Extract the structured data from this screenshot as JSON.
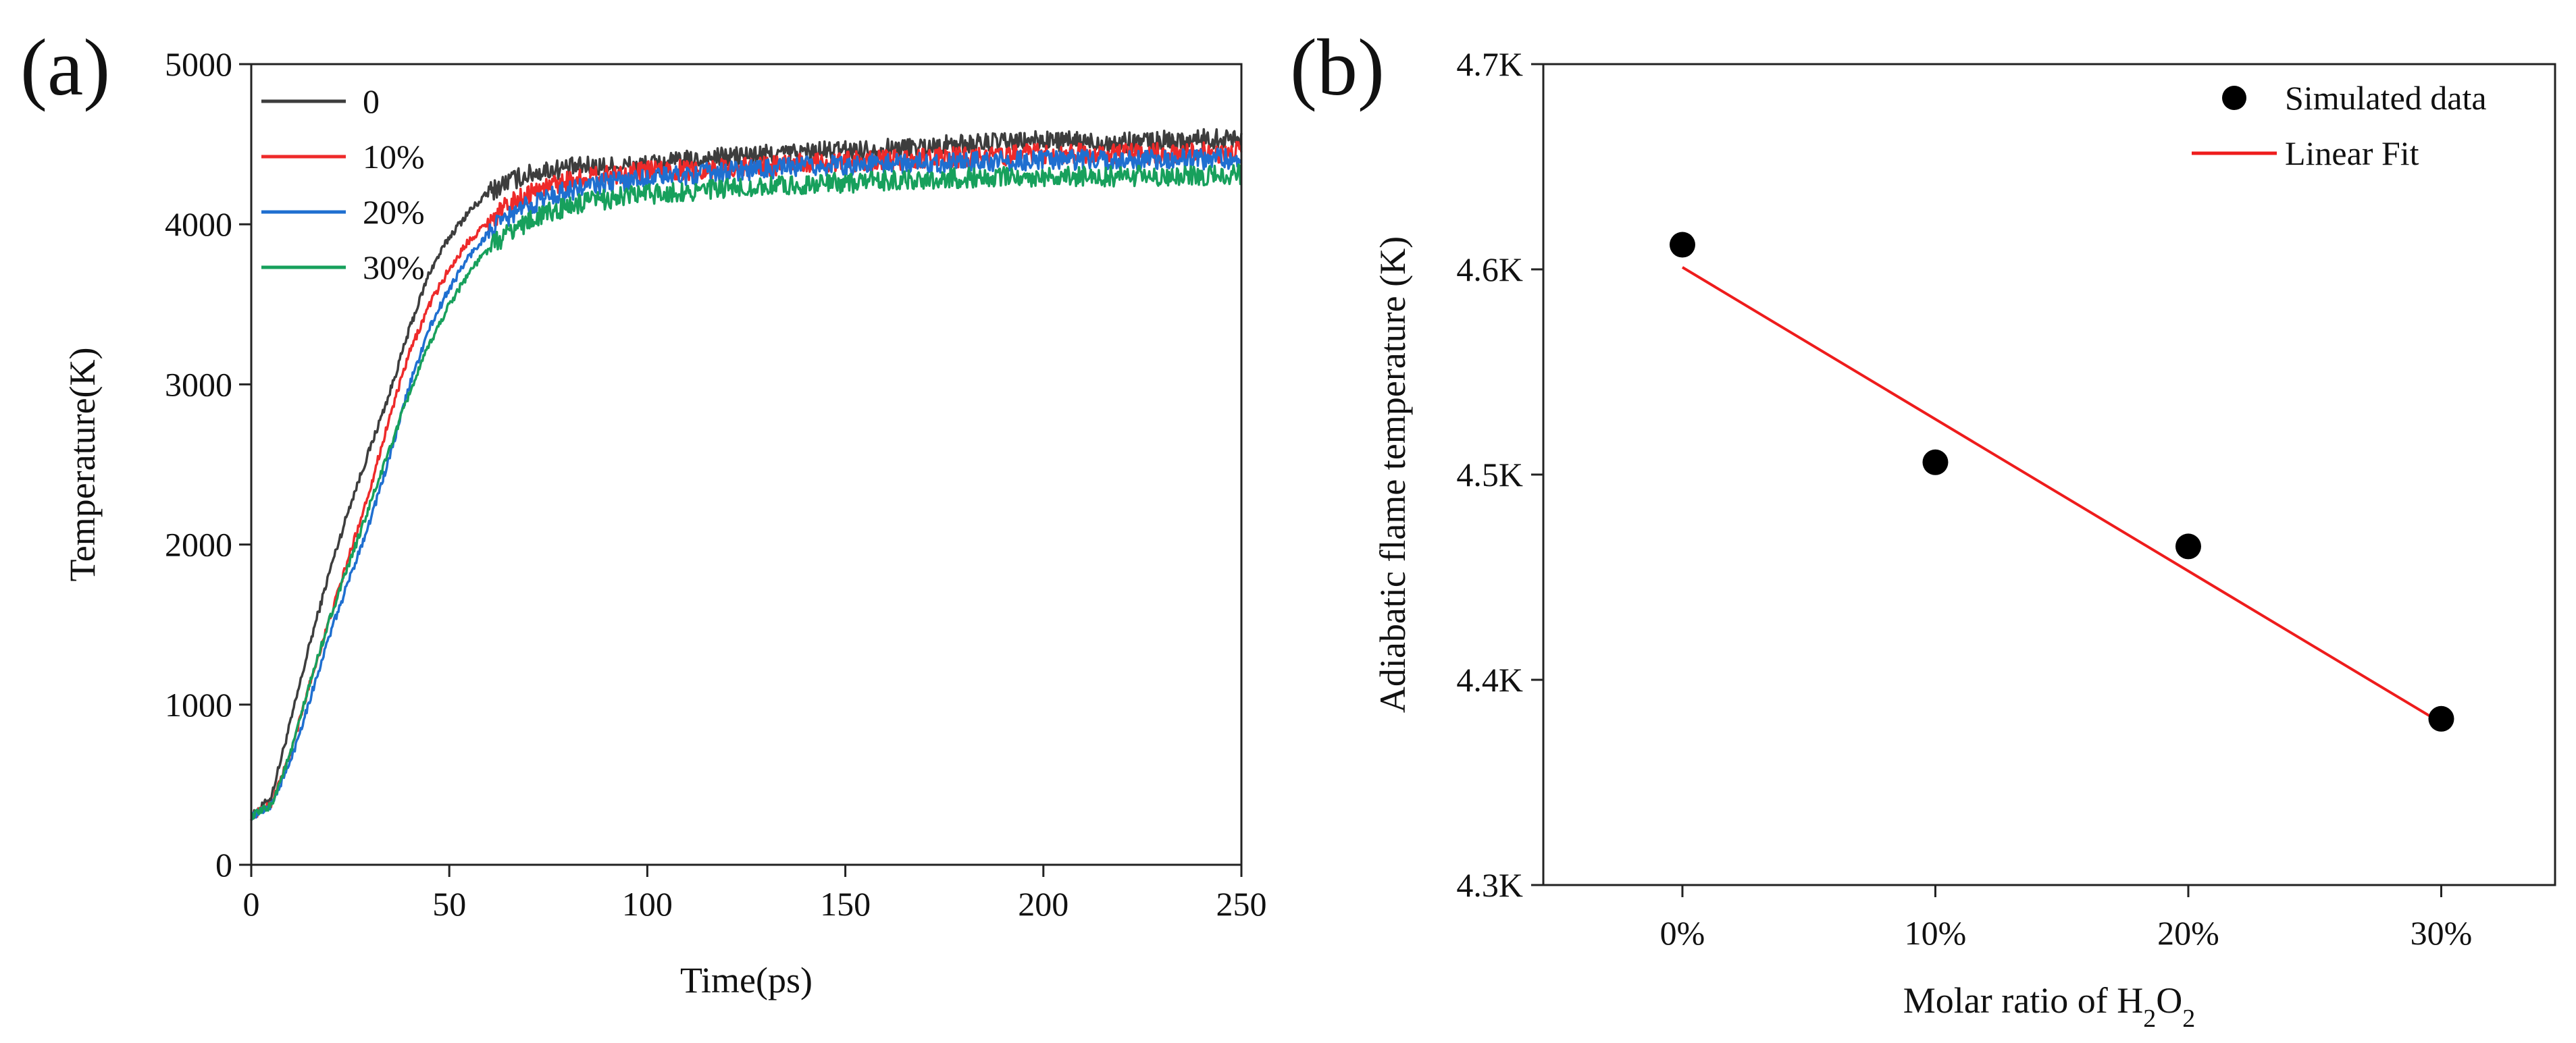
{
  "chart_data": [
    {
      "panel": "(a)",
      "type": "line",
      "xlabel": "Time(ps)",
      "ylabel": "Temperature(K)",
      "xlim": [
        0,
        250
      ],
      "ylim": [
        0,
        5000
      ],
      "xticks": [
        0,
        50,
        100,
        150,
        200,
        250
      ],
      "yticks": [
        0,
        1000,
        2000,
        3000,
        4000,
        5000
      ],
      "grid": false,
      "legend_position": "top-left",
      "series": [
        {
          "name": "0",
          "color": "#3d3d3d",
          "x": [
            0,
            5,
            10,
            15,
            20,
            25,
            30,
            35,
            40,
            45,
            50,
            55,
            60,
            65,
            70,
            75,
            80,
            85,
            90,
            100,
            120,
            140,
            160,
            180,
            200,
            220,
            250
          ],
          "y": [
            300,
            420,
            900,
            1400,
            1850,
            2250,
            2600,
            2950,
            3350,
            3700,
            3920,
            4080,
            4200,
            4270,
            4310,
            4340,
            4350,
            4360,
            4360,
            4370,
            4420,
            4450,
            4470,
            4500,
            4520,
            4510,
            4540
          ]
        },
        {
          "name": "10%",
          "color": "#ee2a2a",
          "x": [
            0,
            5,
            10,
            15,
            20,
            25,
            30,
            35,
            40,
            45,
            50,
            55,
            60,
            65,
            70,
            75,
            80,
            90,
            100,
            120,
            140,
            160,
            180,
            200,
            220,
            250
          ],
          "y": [
            300,
            380,
            700,
            1150,
            1550,
            1950,
            2350,
            2800,
            3200,
            3500,
            3720,
            3900,
            4020,
            4120,
            4190,
            4240,
            4270,
            4310,
            4330,
            4350,
            4380,
            4400,
            4420,
            4440,
            4440,
            4450
          ]
        },
        {
          "name": "20%",
          "color": "#1f6fd0",
          "x": [
            0,
            5,
            10,
            15,
            20,
            25,
            30,
            35,
            40,
            45,
            50,
            55,
            60,
            65,
            70,
            75,
            80,
            90,
            100,
            120,
            140,
            160,
            180,
            200,
            220,
            250
          ],
          "y": [
            300,
            370,
            650,
            1050,
            1450,
            1800,
            2150,
            2550,
            3000,
            3350,
            3600,
            3800,
            3950,
            4050,
            4120,
            4170,
            4210,
            4260,
            4290,
            4330,
            4360,
            4380,
            4390,
            4400,
            4400,
            4410
          ]
        },
        {
          "name": "30%",
          "color": "#17a05c",
          "x": [
            0,
            5,
            10,
            15,
            20,
            25,
            30,
            35,
            40,
            45,
            50,
            55,
            60,
            65,
            70,
            75,
            80,
            90,
            100,
            120,
            140,
            160,
            180,
            200,
            220,
            250
          ],
          "y": [
            300,
            370,
            700,
            1150,
            1550,
            1900,
            2250,
            2600,
            2950,
            3250,
            3500,
            3700,
            3850,
            3950,
            4020,
            4070,
            4110,
            4160,
            4190,
            4220,
            4250,
            4270,
            4290,
            4300,
            4300,
            4310
          ]
        }
      ],
      "noise_amplitude": 40
    },
    {
      "panel": "(b)",
      "type": "scatter",
      "xlabel_prefix": "Molar ratio of H",
      "xlabel_sub1": "2",
      "xlabel_mid": "O",
      "xlabel_sub2": "2",
      "ylabel": "Adiabatic flame temperature (K)",
      "categories": [
        "0%",
        "10%",
        "20%",
        "30%"
      ],
      "x": [
        0,
        10,
        20,
        30
      ],
      "xlim": [
        -5.5,
        34.5
      ],
      "ylim": [
        4.3,
        4.7
      ],
      "yticks": [
        4.3,
        4.4,
        4.5,
        4.6,
        4.7
      ],
      "ytick_labels": [
        "4.3K",
        "4.4K",
        "4.5K",
        "4.6K",
        "4.7K"
      ],
      "grid": false,
      "legend_position": "top-right",
      "series": [
        {
          "name": "Simulated data",
          "marker": "circle",
          "color": "#000000",
          "values": [
            4.612,
            4.506,
            4.465,
            4.381
          ]
        },
        {
          "name": "Linear Fit",
          "style": "line",
          "color": "#ee1c1c",
          "x": [
            0,
            30
          ],
          "values": [
            4.601,
            4.379
          ]
        }
      ]
    }
  ]
}
